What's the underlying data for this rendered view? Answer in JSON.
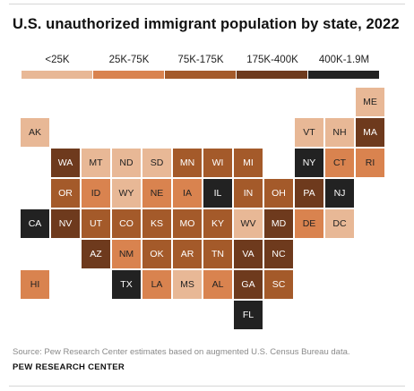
{
  "chart_data": {
    "type": "tile-map",
    "title": "U.S. unauthorized immigrant population by state, 2022",
    "legend": [
      {
        "label": "<25K",
        "color": "#e8b896",
        "text_color": "#222222"
      },
      {
        "label": "25K-75K",
        "color": "#d9834f",
        "text_color": "#222222"
      },
      {
        "label": "75K-175K",
        "color": "#a45a2a",
        "text_color": "#ffffff"
      },
      {
        "label": "175K-400K",
        "color": "#6e3a1d",
        "text_color": "#ffffff"
      },
      {
        "label": "400K-1.9M",
        "color": "#222222",
        "text_color": "#ffffff"
      }
    ],
    "states": [
      {
        "abbr": "ME",
        "bin": 0
      },
      {
        "abbr": "AK",
        "bin": 0
      },
      {
        "abbr": "VT",
        "bin": 0
      },
      {
        "abbr": "NH",
        "bin": 0
      },
      {
        "abbr": "MA",
        "bin": 3
      },
      {
        "abbr": "WA",
        "bin": 3
      },
      {
        "abbr": "MT",
        "bin": 0
      },
      {
        "abbr": "ND",
        "bin": 0
      },
      {
        "abbr": "SD",
        "bin": 0
      },
      {
        "abbr": "MN",
        "bin": 2
      },
      {
        "abbr": "WI",
        "bin": 2
      },
      {
        "abbr": "MI",
        "bin": 2
      },
      {
        "abbr": "NY",
        "bin": 4
      },
      {
        "abbr": "CT",
        "bin": 1
      },
      {
        "abbr": "RI",
        "bin": 1
      },
      {
        "abbr": "OR",
        "bin": 2
      },
      {
        "abbr": "ID",
        "bin": 1
      },
      {
        "abbr": "WY",
        "bin": 0
      },
      {
        "abbr": "NE",
        "bin": 1
      },
      {
        "abbr": "IA",
        "bin": 1
      },
      {
        "abbr": "IL",
        "bin": 4
      },
      {
        "abbr": "IN",
        "bin": 2
      },
      {
        "abbr": "OH",
        "bin": 2
      },
      {
        "abbr": "PA",
        "bin": 3
      },
      {
        "abbr": "NJ",
        "bin": 4
      },
      {
        "abbr": "CA",
        "bin": 4
      },
      {
        "abbr": "NV",
        "bin": 3
      },
      {
        "abbr": "UT",
        "bin": 2
      },
      {
        "abbr": "CO",
        "bin": 2
      },
      {
        "abbr": "KS",
        "bin": 2
      },
      {
        "abbr": "MO",
        "bin": 2
      },
      {
        "abbr": "KY",
        "bin": 2
      },
      {
        "abbr": "WV",
        "bin": 0
      },
      {
        "abbr": "MD",
        "bin": 3
      },
      {
        "abbr": "DE",
        "bin": 1
      },
      {
        "abbr": "DC",
        "bin": 0
      },
      {
        "abbr": "AZ",
        "bin": 3
      },
      {
        "abbr": "NM",
        "bin": 1
      },
      {
        "abbr": "OK",
        "bin": 2
      },
      {
        "abbr": "AR",
        "bin": 2
      },
      {
        "abbr": "TN",
        "bin": 2
      },
      {
        "abbr": "VA",
        "bin": 3
      },
      {
        "abbr": "NC",
        "bin": 3
      },
      {
        "abbr": "HI",
        "bin": 1
      },
      {
        "abbr": "TX",
        "bin": 4
      },
      {
        "abbr": "LA",
        "bin": 1
      },
      {
        "abbr": "MS",
        "bin": 0
      },
      {
        "abbr": "AL",
        "bin": 1
      },
      {
        "abbr": "GA",
        "bin": 3
      },
      {
        "abbr": "SC",
        "bin": 2
      },
      {
        "abbr": "FL",
        "bin": 4
      }
    ]
  },
  "source": "Source: Pew Research Center estimates based on augmented U.S. Census Bureau data.",
  "credit": "PEW RESEARCH CENTER"
}
